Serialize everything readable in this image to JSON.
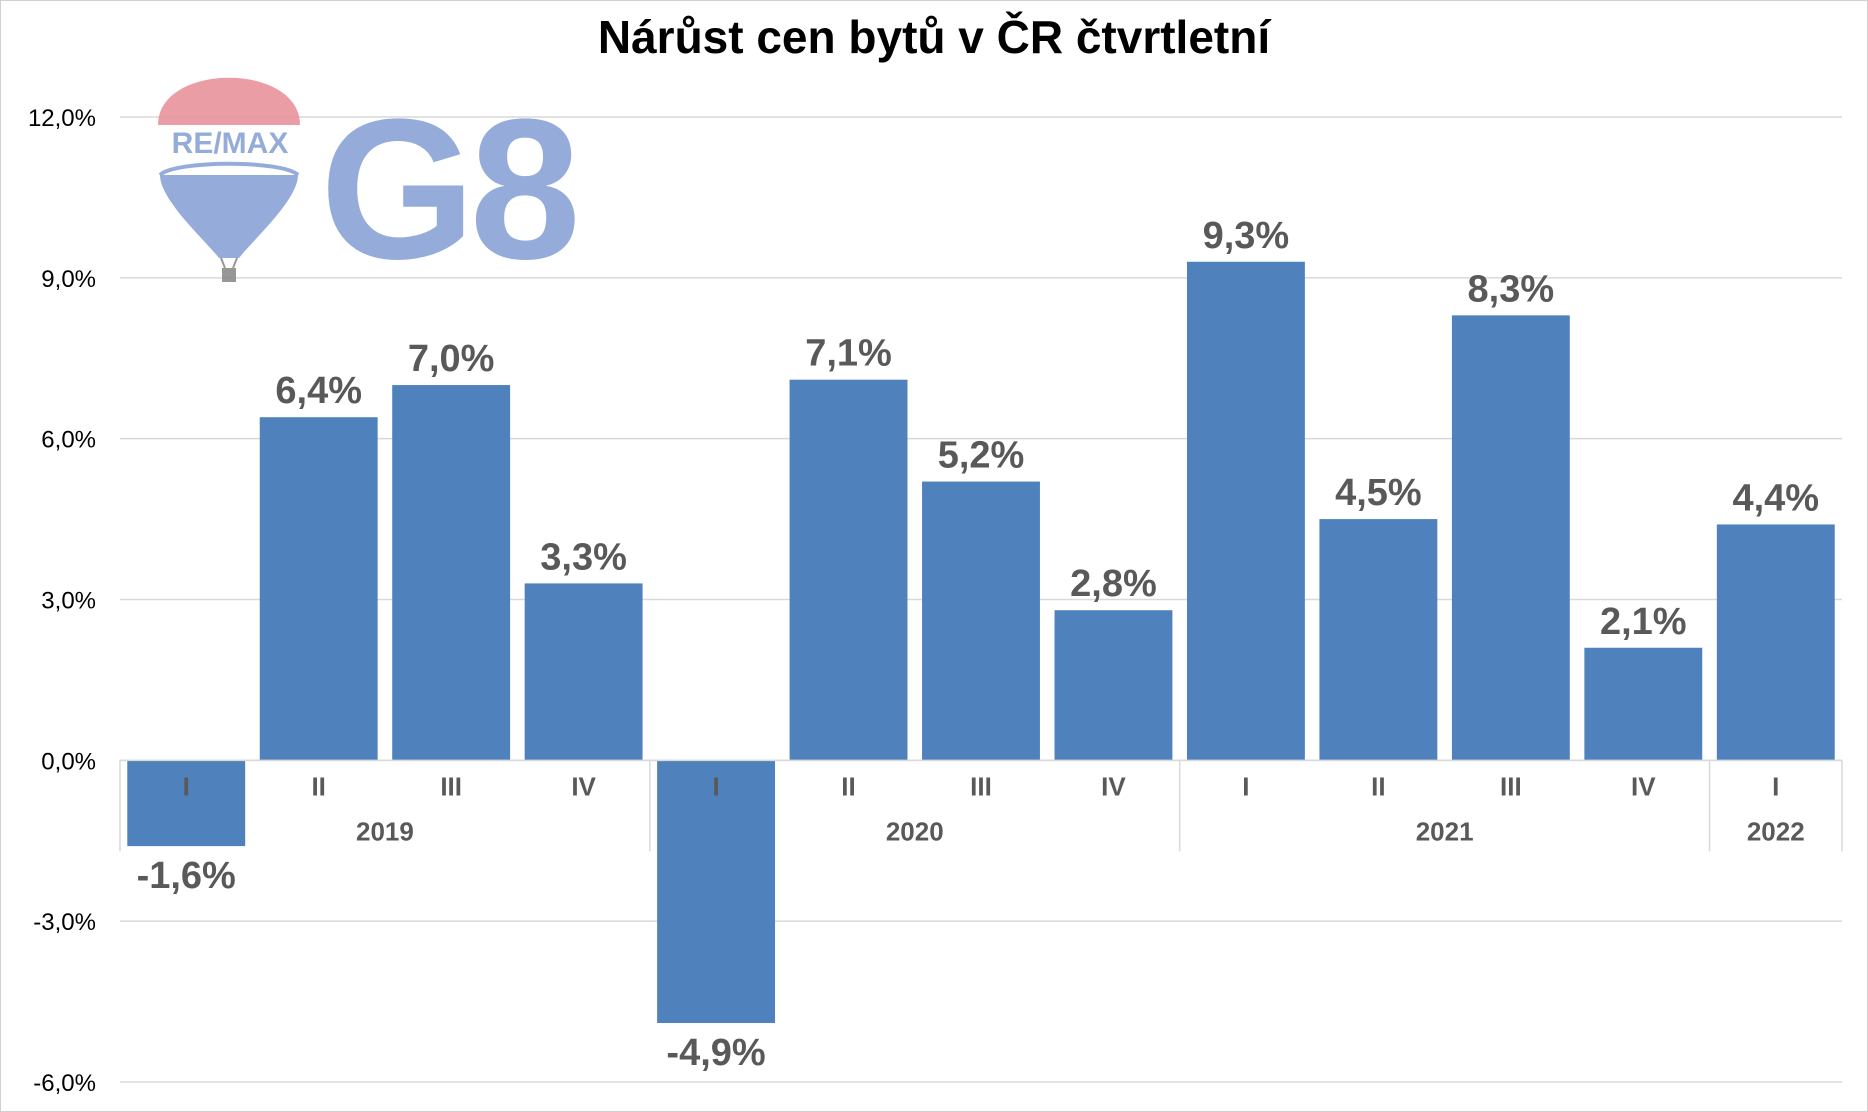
{
  "chart_data": {
    "type": "bar",
    "title": "Nárůst cen bytů v ČR čtvrtletní",
    "xlabel": "",
    "ylabel": "",
    "ylim": [
      -6,
      12
    ],
    "yticks": [
      -6,
      -3,
      0,
      3,
      6,
      9,
      12
    ],
    "ytick_labels": [
      "-6,0%",
      "-3,0%",
      "0,0%",
      "3,0%",
      "6,0%",
      "9,0%",
      "12,0%"
    ],
    "grid": true,
    "legend": "none",
    "categories": [
      "I",
      "II",
      "III",
      "IV",
      "I",
      "II",
      "III",
      "IV",
      "I",
      "II",
      "III",
      "IV",
      "I"
    ],
    "years": [
      {
        "label": "2019",
        "count": 4
      },
      {
        "label": "2020",
        "count": 4
      },
      {
        "label": "2021",
        "count": 4
      },
      {
        "label": "2022",
        "count": 1
      }
    ],
    "values": [
      -1.6,
      6.4,
      7.0,
      3.3,
      -4.9,
      7.1,
      5.2,
      2.8,
      9.3,
      4.5,
      8.3,
      2.1,
      4.4
    ],
    "value_labels": [
      "-1,6%",
      "6,4%",
      "7,0%",
      "3,3%",
      "-4,9%",
      "7,1%",
      "5,2%",
      "2,8%",
      "9,3%",
      "4,5%",
      "8,3%",
      "2,1%",
      "4,4%"
    ]
  },
  "logo": {
    "brand_text": "RE/MAX",
    "office_text": "G8"
  },
  "colors": {
    "bar": "#4f81bd",
    "grid": "#d9d9d9",
    "label": "#595959",
    "logo_blue": "#8aa4d8",
    "logo_red": "#e8939b"
  }
}
